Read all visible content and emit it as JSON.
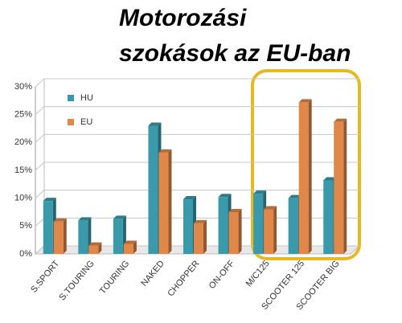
{
  "chart_data": {
    "type": "bar",
    "title": [
      "Motorozási",
      "szokások az EU-ban"
    ],
    "categories": [
      "S.SPORT",
      "S.TOURING",
      "TOURING",
      "NAKED",
      "CHOPPER",
      "ON-OFF",
      "M/C125",
      "SCOOTER 125",
      "SCOOTER BIG"
    ],
    "series": [
      {
        "name": "HU",
        "color": "#3a9aab",
        "values": [
          9.5,
          6,
          6.3,
          23,
          9.8,
          10.2,
          10.8,
          10,
          13.2
        ]
      },
      {
        "name": "EU",
        "color": "#e0874a",
        "values": [
          5.8,
          1.5,
          1.8,
          18.2,
          5.5,
          7.5,
          8,
          27.2,
          23.7
        ]
      }
    ],
    "ylim": [
      0,
      30
    ],
    "yticks": [
      {
        "value": 0,
        "label": "0%"
      },
      {
        "value": 5,
        "label": "5%"
      },
      {
        "value": 10,
        "label": "10%"
      },
      {
        "value": 15,
        "label": "15%"
      },
      {
        "value": 20,
        "label": "20%"
      },
      {
        "value": 25,
        "label": "25%"
      },
      {
        "value": 30,
        "label": "30%"
      }
    ],
    "grid": true
  }
}
